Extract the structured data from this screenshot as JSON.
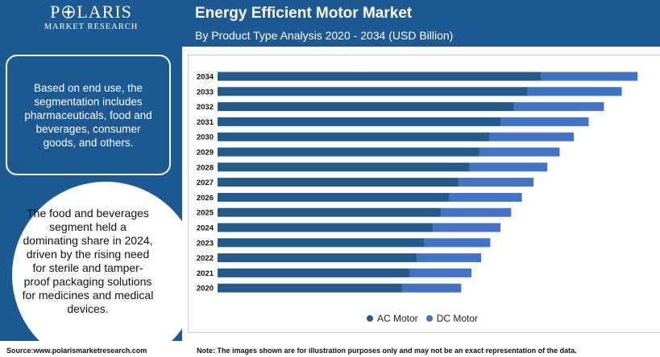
{
  "brand": {
    "name_left": "P",
    "name_right": "LARIS",
    "tagline": "MARKET RESEARCH"
  },
  "header": {
    "title": "Energy Efficient Motor Market",
    "subtitle": "By Product Type Analysis 2020 - 2034 (USD Billion)"
  },
  "sidebar": {
    "box_text": "Based on end use, the segmentation includes pharmaceuticals, food and beverages, consumer goods, and others.",
    "circle_text": "The food and beverages segment held a dominating share in 2024, driven by the rising need for sterile and tamper-proof packaging solutions for medicines and medical devices."
  },
  "footer": {
    "source": "Source:www.polarismarketresearch.com",
    "note": "Note: The images shown are for illustration purposes only and may not be an exact representation of the data."
  },
  "colors": {
    "primary": "#1d5993",
    "ac_motor": "#255b8a",
    "dc_motor": "#4472c4"
  },
  "chart_data": {
    "type": "bar",
    "orientation": "horizontal",
    "stacked": true,
    "categories": [
      "2034",
      "2033",
      "2032",
      "2031",
      "2030",
      "2029",
      "2028",
      "2027",
      "2026",
      "2025",
      "2024",
      "2023",
      "2022",
      "2021",
      "2020"
    ],
    "series": [
      {
        "name": "AC Motor",
        "color": "#255b8a",
        "values": [
          63.5,
          60.8,
          58.2,
          55.6,
          53.4,
          51.3,
          49.4,
          47.3,
          45.5,
          43.8,
          42.2,
          40.6,
          39.1,
          37.7,
          36.2
        ]
      },
      {
        "name": "DC Motor",
        "color": "#4472c4",
        "values": [
          18.9,
          18.5,
          17.6,
          17.2,
          16.5,
          15.8,
          15.3,
          14.7,
          14.2,
          13.8,
          13.3,
          12.9,
          12.6,
          12.1,
          11.6
        ]
      }
    ],
    "xlim": [
      0,
      83
    ],
    "legend_position": "bottom",
    "grid": false,
    "axes_labels": false,
    "value_labels": false
  }
}
